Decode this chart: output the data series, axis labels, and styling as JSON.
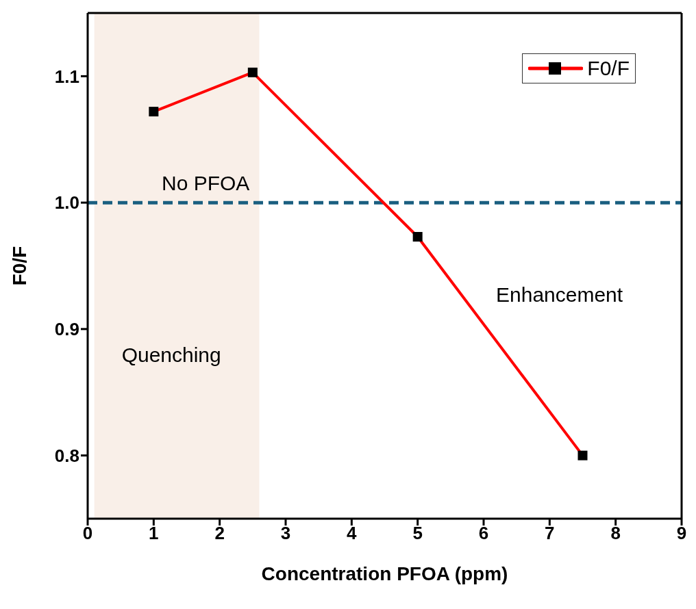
{
  "chart_data": {
    "type": "line",
    "xlabel": "Concentration PFOA (ppm)",
    "ylabel": "F0/F",
    "x": [
      1,
      2.5,
      5,
      7.5
    ],
    "series": [
      {
        "name": "F0/F",
        "color": "#ff0000",
        "values": [
          1.072,
          1.103,
          0.973,
          0.8
        ]
      }
    ],
    "xlim": [
      0,
      9
    ],
    "xticks": [
      0,
      1,
      2,
      3,
      4,
      5,
      6,
      7,
      8,
      9
    ],
    "ylim": [
      0.75,
      1.15
    ],
    "yticks": [
      0.8,
      0.9,
      {
        "value": 1,
        "label": "1.0"
      },
      1.1
    ],
    "ref_lines": [
      {
        "axis": "y",
        "value": 1.0,
        "label": "No PFOA",
        "color": "#1a5f80",
        "line_style": "dashed"
      }
    ],
    "bands": [
      {
        "axis": "x",
        "from": 0.1,
        "to": 2.6,
        "label": "Quenching",
        "color": "#f9efe8"
      }
    ],
    "annotations": [
      "Enhancement"
    ],
    "marker": "square",
    "line_style": "solid",
    "legend": "top right"
  }
}
